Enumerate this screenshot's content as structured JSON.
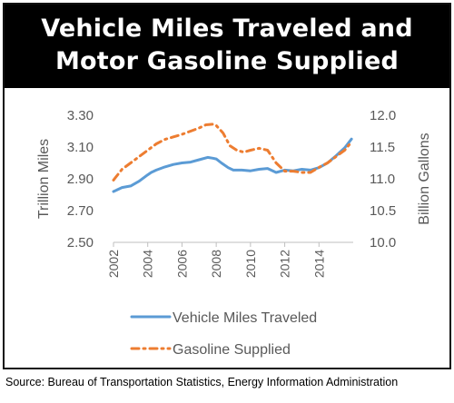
{
  "title": {
    "line1": "Vehicle Miles Traveled and",
    "line2": "Motor Gasoline Supplied"
  },
  "source": "Source: Bureau of Transportation Statistics, Energy Information Administration",
  "colors": {
    "vmt": "#5b9bd5",
    "gasoline": "#ed7d31",
    "axis_text": "#595959",
    "axis_line": "#bfbfbf"
  },
  "chart_data": {
    "type": "line",
    "title": "Vehicle Miles Traveled and Motor Gasoline Supplied",
    "ylabel_left": "Trillion Miles",
    "ylabel_right": "Billion Gallons",
    "xlim": [
      2002,
      2016
    ],
    "ylim_left": [
      2.5,
      3.3
    ],
    "ylim_right": [
      10.0,
      12.0
    ],
    "x_ticks": [
      "2002",
      "2004",
      "2006",
      "2008",
      "2010",
      "2012",
      "2014"
    ],
    "y_left_ticks": [
      "3.30",
      "3.10",
      "2.90",
      "2.70",
      "2.50"
    ],
    "y_right_ticks": [
      "12.0",
      "11.5",
      "11.0",
      "10.5",
      "10.0"
    ],
    "legend_position": "bottom",
    "series": [
      {
        "name": "Vehicle Miles Traveled",
        "axis": "left",
        "style": "solid",
        "x": [
          2002.0,
          2002.5,
          2003.0,
          2003.5,
          2004.0,
          2004.2,
          2004.5,
          2005.0,
          2005.5,
          2006.0,
          2006.5,
          2007.0,
          2007.5,
          2007.8,
          2008.0,
          2008.3,
          2008.7,
          2009.0,
          2009.5,
          2010.0,
          2010.5,
          2011.0,
          2011.5,
          2012.0,
          2012.5,
          2013.0,
          2013.5,
          2014.0,
          2014.5,
          2015.0,
          2015.5,
          2015.9
        ],
        "y": [
          2.82,
          2.845,
          2.855,
          2.885,
          2.925,
          2.94,
          2.955,
          2.975,
          2.99,
          3.0,
          3.005,
          3.02,
          3.035,
          3.03,
          3.025,
          3.0,
          2.97,
          2.955,
          2.955,
          2.95,
          2.96,
          2.965,
          2.94,
          2.955,
          2.95,
          2.96,
          2.955,
          2.97,
          3.0,
          3.045,
          3.095,
          3.15
        ]
      },
      {
        "name": "Gasoline Supplied",
        "axis": "right",
        "style": "dash-dot",
        "x": [
          2002.0,
          2002.5,
          2003.0,
          2003.5,
          2004.0,
          2004.5,
          2005.0,
          2005.5,
          2006.0,
          2006.5,
          2007.0,
          2007.4,
          2007.8,
          2008.0,
          2008.4,
          2008.8,
          2009.2,
          2009.6,
          2010.0,
          2010.5,
          2011.0,
          2011.5,
          2012.0,
          2012.5,
          2013.0,
          2013.5,
          2014.0,
          2014.5,
          2015.0,
          2015.5,
          2015.9
        ],
        "y": [
          10.98,
          11.15,
          11.25,
          11.35,
          11.45,
          11.55,
          11.62,
          11.66,
          11.7,
          11.75,
          11.8,
          11.85,
          11.86,
          11.84,
          11.72,
          11.52,
          11.45,
          11.42,
          11.45,
          11.48,
          11.45,
          11.25,
          11.12,
          11.12,
          11.1,
          11.1,
          11.18,
          11.25,
          11.35,
          11.45,
          11.58
        ]
      }
    ]
  }
}
